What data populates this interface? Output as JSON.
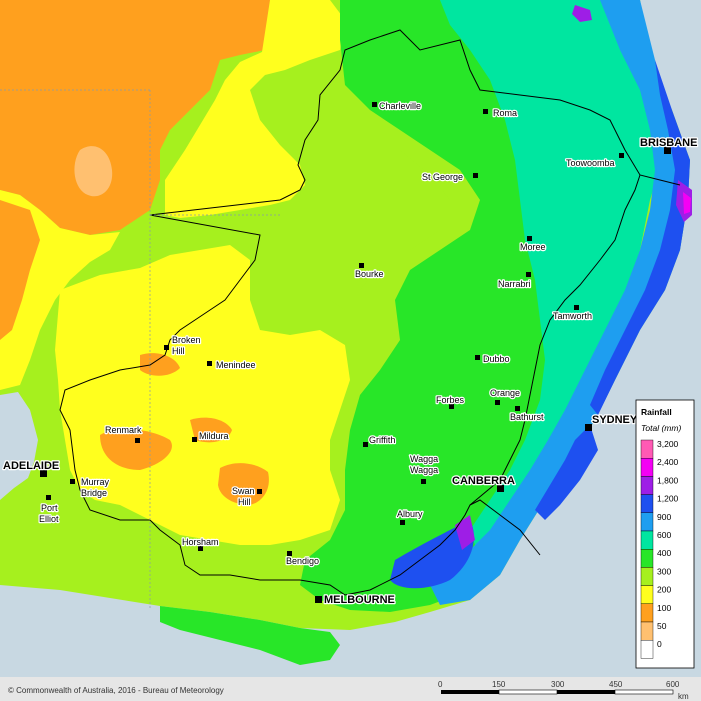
{
  "legend": {
    "title": "Rainfall",
    "subtitle": "Total (mm)",
    "classes": [
      {
        "label": "3,200",
        "color": "#ff5ab4"
      },
      {
        "label": "2,400",
        "color": "#f400f4"
      },
      {
        "label": "1,800",
        "color": "#9e1ee6"
      },
      {
        "label": "1,200",
        "color": "#1e50f0"
      },
      {
        "label": "900",
        "color": "#1e9ef0"
      },
      {
        "label": "600",
        "color": "#00e6a0"
      },
      {
        "label": "400",
        "color": "#28e628"
      },
      {
        "label": "300",
        "color": "#a6f01e"
      },
      {
        "label": "200",
        "color": "#ffff1e"
      },
      {
        "label": "100",
        "color": "#ffa01e"
      },
      {
        "label": "50",
        "color": "#ffc070"
      },
      {
        "label": "0",
        "color": "#ffffff"
      }
    ]
  },
  "places": {
    "charleville": "Charleville",
    "roma": "Roma",
    "brisbane": "BRISBANE",
    "toowoomba": "Toowoomba",
    "st_george": "St George",
    "moree": "Moree",
    "bourke": "Bourke",
    "narrabri": "Narrabri",
    "tamworth": "Tamworth",
    "broken": "Broken",
    "hill": "Hill",
    "menindee": "Menindee",
    "dubbo": "Dubbo",
    "orange": "Orange",
    "forbes": "Forbes",
    "bathurst": "Bathurst",
    "sydney": "SYDNEY",
    "renmark": "Renmark",
    "mildura": "Mildura",
    "griffith": "Griffith",
    "wagga1": "Wagga",
    "wagga2": "Wagga",
    "adelaide": "ADELAIDE",
    "murray": "Murray",
    "bridge": "Bridge",
    "swan": "Swan",
    "swan_hill": "Hill",
    "canberra": "CANBERRA",
    "port": "Port",
    "elliot": "Elliot",
    "albury": "Albury",
    "horsham": "Horsham",
    "bendigo": "Bendigo",
    "melbourne": "MELBOURNE"
  },
  "footer": {
    "copyright": "© Commonwealth of Australia, 2016 - Bureau of Meteorology"
  },
  "scale": {
    "ticks": [
      "0",
      "150",
      "300",
      "450",
      "600"
    ],
    "unit": "km"
  }
}
